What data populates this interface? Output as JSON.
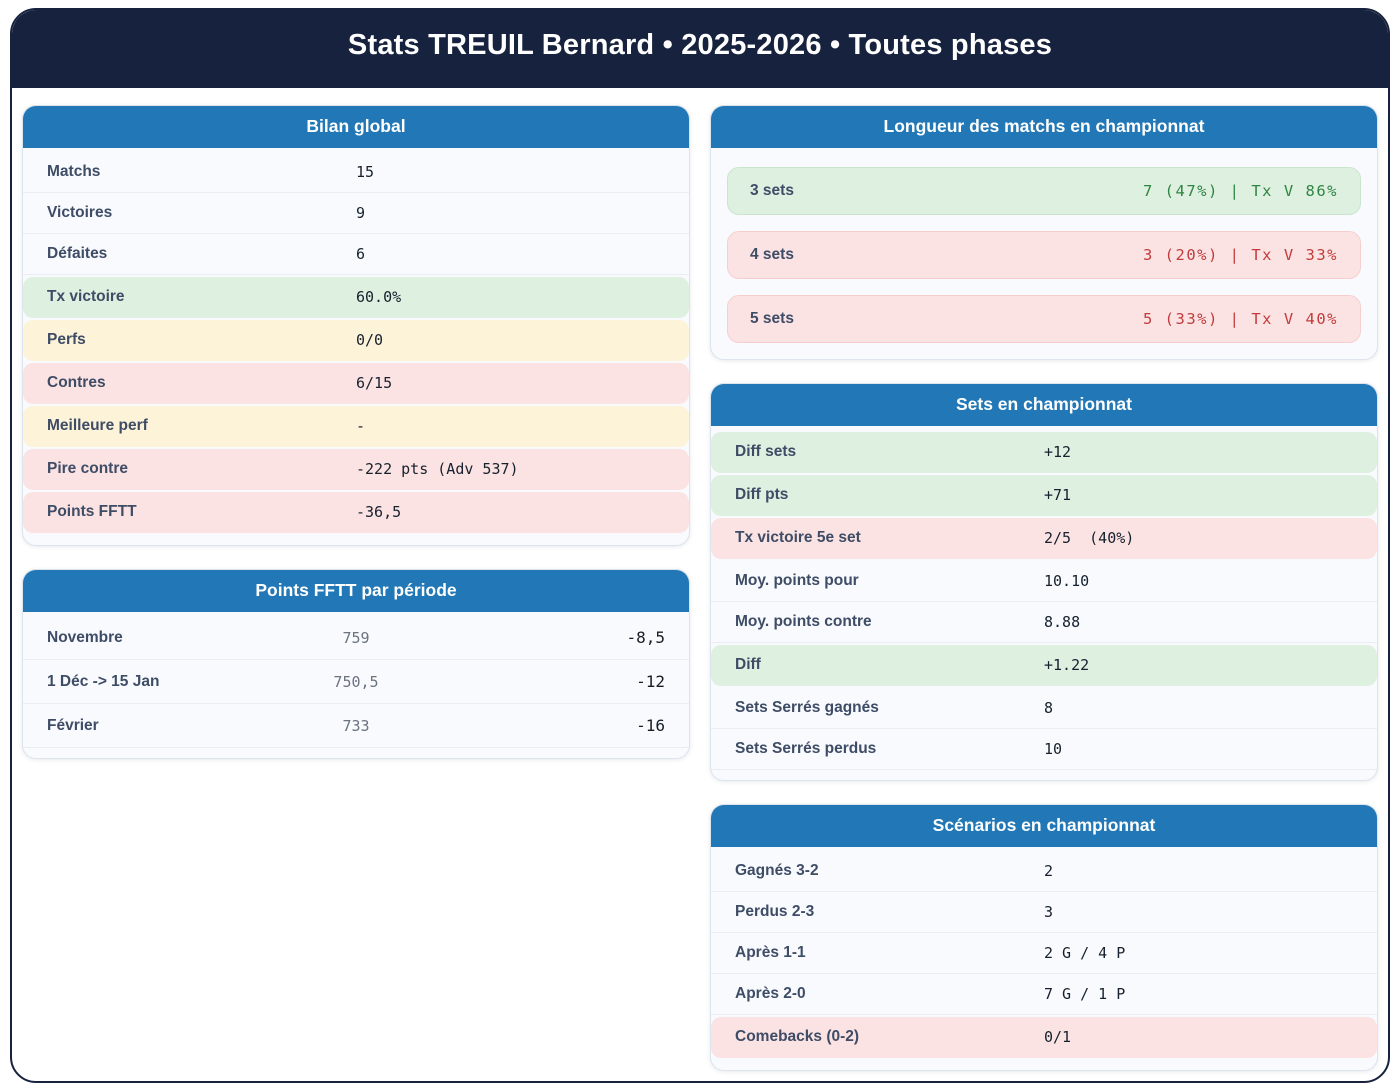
{
  "header": {
    "title": "Stats TREUIL Bernard • 2025-2026 • Toutes phases"
  },
  "colors": {
    "navy": "#17233E",
    "card_header_blue": "#2278B6",
    "green_bg": "#DEF0E0",
    "yellow_bg": "#FDF3D9",
    "pink_bg": "#FCE3E3",
    "green_text": "#2E8540",
    "red_text": "#C03C3C",
    "label_text": "#3E4C66"
  },
  "cards": {
    "bilan": {
      "title": "Bilan global",
      "rows": [
        {
          "label": "Matchs",
          "value": "15",
          "tone": "plain"
        },
        {
          "label": "Victoires",
          "value": "9",
          "tone": "plain"
        },
        {
          "label": "Défaites",
          "value": "6",
          "tone": "plain"
        },
        {
          "label": "Tx victoire",
          "value": "60.0%",
          "tone": "green"
        },
        {
          "label": "Perfs",
          "value": "0/0",
          "tone": "yellow"
        },
        {
          "label": "Contres",
          "value": "6/15",
          "tone": "pink"
        },
        {
          "label": "Meilleure perf",
          "value": "-",
          "tone": "yellow"
        },
        {
          "label": "Pire contre",
          "value": "-222 pts (Adv 537)",
          "tone": "pink"
        },
        {
          "label": "Points FFTT",
          "value": "-36,5",
          "tone": "pink"
        }
      ]
    },
    "periodes": {
      "title": "Points FFTT par période",
      "rows": [
        {
          "label": "Novembre",
          "points": "759",
          "delta": "-8,5"
        },
        {
          "label": "1 Déc -> 15 Jan",
          "points": "750,5",
          "delta": "-12"
        },
        {
          "label": "Février",
          "points": "733",
          "delta": "-16"
        }
      ]
    },
    "longueur": {
      "title": "Longueur des matchs en championnat",
      "rows": [
        {
          "label": "3 sets",
          "value": "7 (47%) | Tx V 86%",
          "tone": "green"
        },
        {
          "label": "4 sets",
          "value": "3 (20%) | Tx V 33%",
          "tone": "pink"
        },
        {
          "label": "5 sets",
          "value": "5 (33%) | Tx V 40%",
          "tone": "pink"
        }
      ]
    },
    "sets": {
      "title": "Sets en championnat",
      "rows": [
        {
          "label": "Diff sets",
          "value": "+12",
          "tone": "green"
        },
        {
          "label": "Diff pts",
          "value": "+71",
          "tone": "green"
        },
        {
          "label": "Tx victoire 5e set",
          "value": "2/5  (40%)",
          "tone": "pink"
        },
        {
          "label": "Moy. points pour",
          "value": "10.10",
          "tone": "plain"
        },
        {
          "label": "Moy. points contre",
          "value": "8.88",
          "tone": "plain"
        },
        {
          "label": "Diff",
          "value": "+1.22",
          "tone": "green"
        },
        {
          "label": "Sets Serrés gagnés",
          "value": "8",
          "tone": "plain"
        },
        {
          "label": "Sets Serrés perdus",
          "value": "10",
          "tone": "plain"
        }
      ]
    },
    "scenarios": {
      "title": "Scénarios en championnat",
      "rows": [
        {
          "label": "Gagnés 3-2",
          "value": "2",
          "tone": "plain"
        },
        {
          "label": "Perdus 2-3",
          "value": "3",
          "tone": "plain"
        },
        {
          "label": "Après 1-1",
          "value": "2 G / 4 P",
          "tone": "plain"
        },
        {
          "label": "Après 2-0",
          "value": "7 G / 1 P",
          "tone": "plain"
        },
        {
          "label": "Comebacks (0-2)",
          "value": "0/1",
          "tone": "pink"
        }
      ]
    }
  }
}
